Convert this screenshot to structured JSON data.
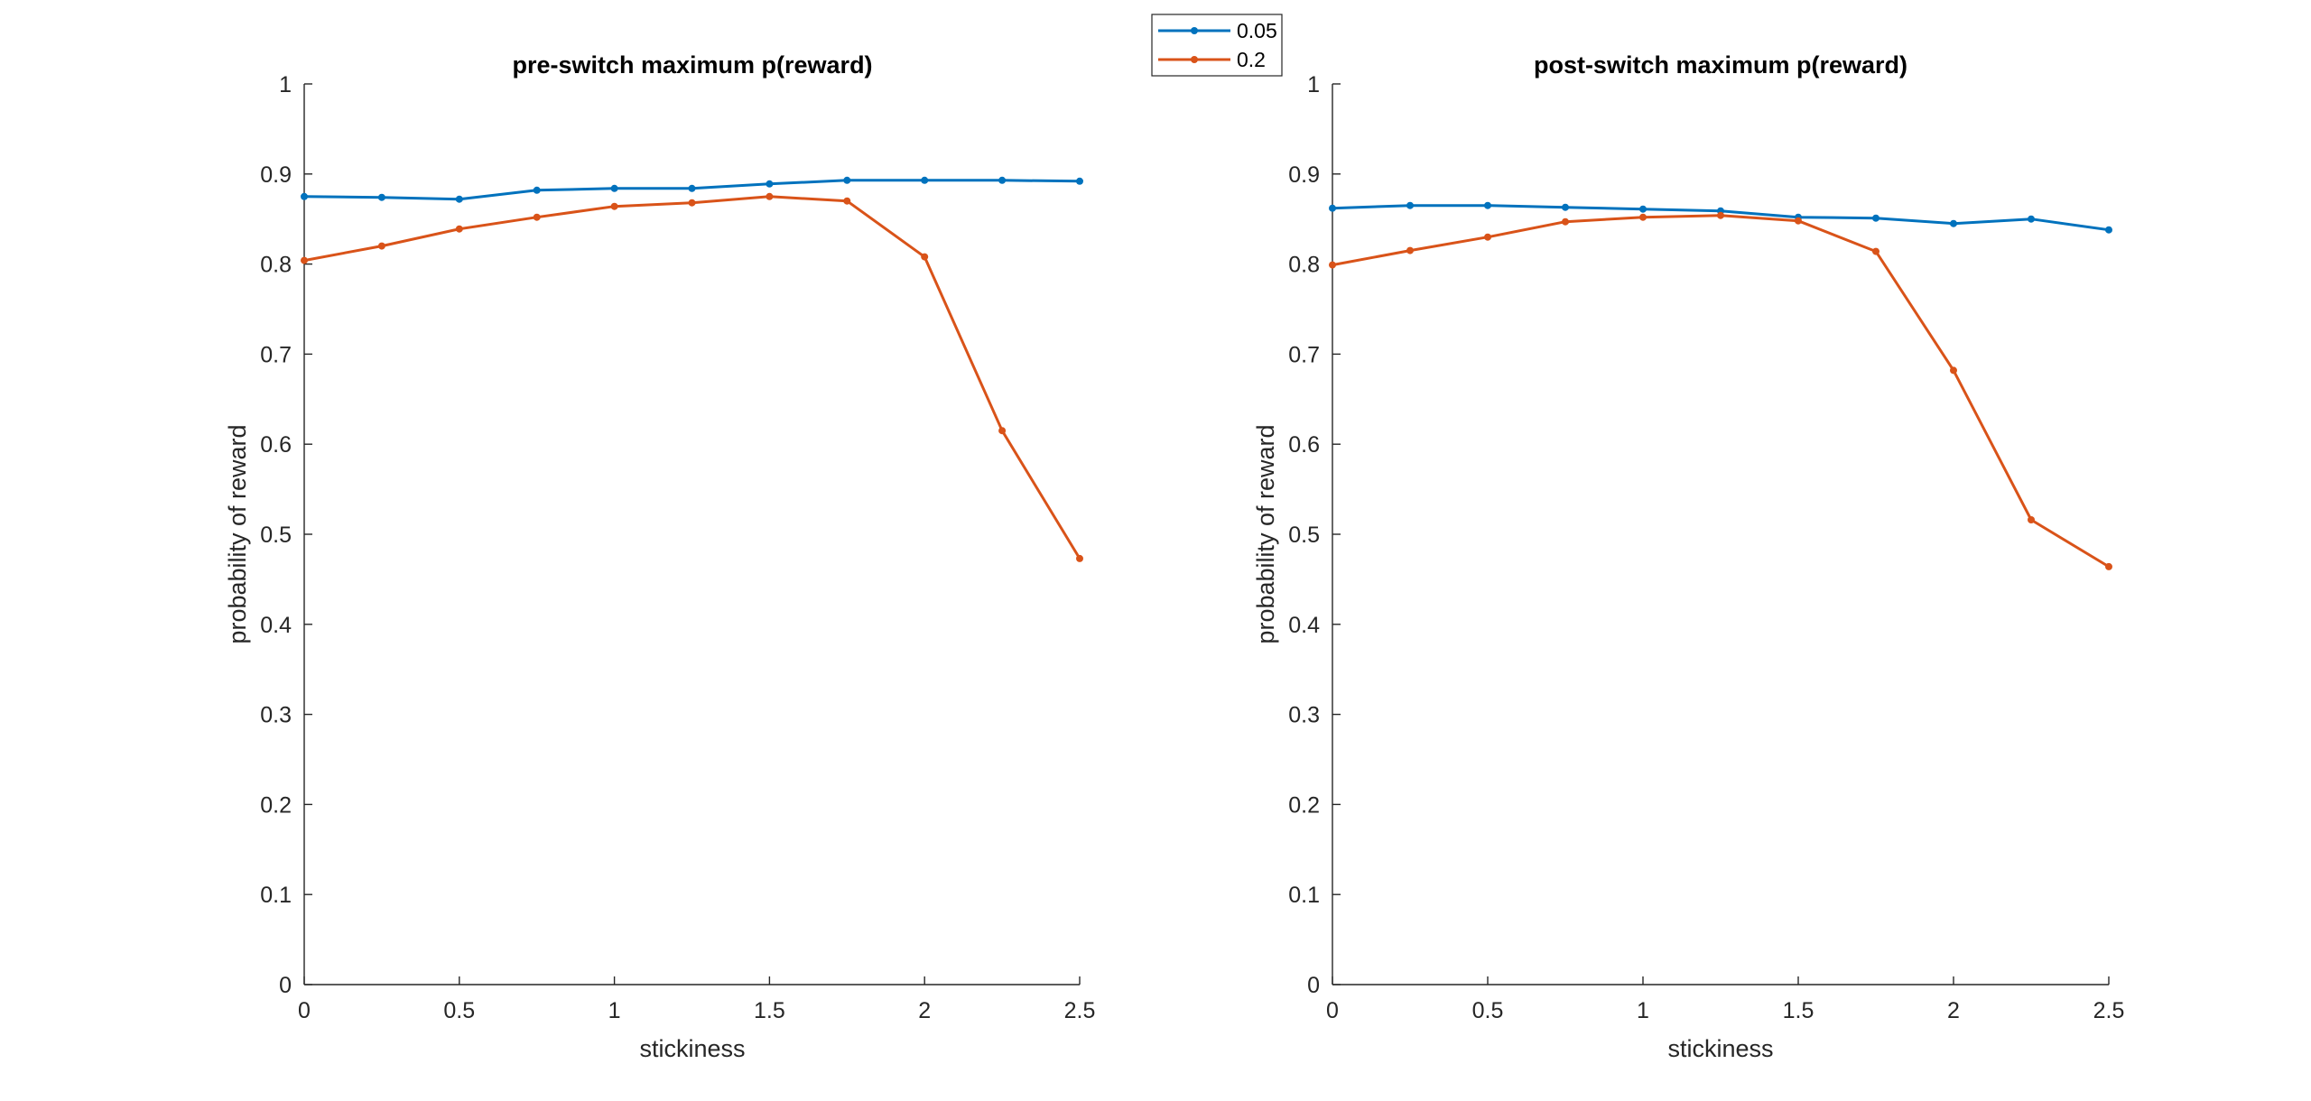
{
  "colors": {
    "series_0_05": "#0072BD",
    "series_0_2": "#D95319",
    "axis": "#262626",
    "background": "#FFFFFF"
  },
  "legend": {
    "entries": [
      "0.05",
      "0.2"
    ],
    "placement": "top-center"
  },
  "chart_data": [
    {
      "type": "line",
      "title": "pre-switch maximum p(reward)",
      "xlabel": "stickiness",
      "ylabel": "probability of reward",
      "xlim": [
        0,
        2.5
      ],
      "ylim": [
        0,
        1
      ],
      "grid": false,
      "xticks": [
        "0",
        "0.5",
        "1",
        "1.5",
        "2",
        "2.5"
      ],
      "yticks": [
        "0",
        "0.1",
        "0.2",
        "0.3",
        "0.4",
        "0.5",
        "0.6",
        "0.7",
        "0.8",
        "0.9",
        "1"
      ],
      "x": [
        0,
        0.25,
        0.5,
        0.75,
        1,
        1.25,
        1.5,
        1.75,
        2,
        2.25,
        2.5
      ],
      "series": [
        {
          "name": "0.05",
          "values": [
            0.875,
            0.874,
            0.872,
            0.882,
            0.884,
            0.884,
            0.889,
            0.893,
            0.893,
            0.893,
            0.892
          ]
        },
        {
          "name": "0.2",
          "values": [
            0.804,
            0.82,
            0.839,
            0.852,
            0.864,
            0.868,
            0.875,
            0.87,
            0.808,
            0.615,
            0.473
          ]
        }
      ]
    },
    {
      "type": "line",
      "title": "post-switch maximum p(reward)",
      "xlabel": "stickiness",
      "ylabel": "probability of reward",
      "xlim": [
        0,
        2.5
      ],
      "ylim": [
        0,
        1
      ],
      "grid": false,
      "xticks": [
        "0",
        "0.5",
        "1",
        "1.5",
        "2",
        "2.5"
      ],
      "yticks": [
        "0",
        "0.1",
        "0.2",
        "0.3",
        "0.4",
        "0.5",
        "0.6",
        "0.7",
        "0.8",
        "0.9",
        "1"
      ],
      "x": [
        0,
        0.25,
        0.5,
        0.75,
        1,
        1.25,
        1.5,
        1.75,
        2,
        2.25,
        2.5
      ],
      "series": [
        {
          "name": "0.05",
          "values": [
            0.862,
            0.865,
            0.865,
            0.863,
            0.861,
            0.859,
            0.852,
            0.851,
            0.845,
            0.85,
            0.838
          ]
        },
        {
          "name": "0.2",
          "values": [
            0.799,
            0.815,
            0.83,
            0.847,
            0.852,
            0.854,
            0.848,
            0.814,
            0.682,
            0.516,
            0.464
          ]
        }
      ]
    }
  ]
}
